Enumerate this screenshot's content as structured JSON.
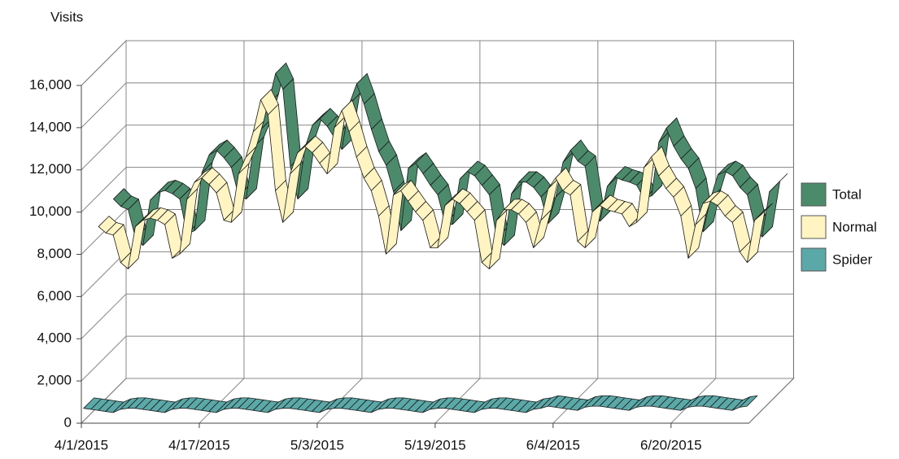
{
  "chart_data": {
    "type": "ribbon3d",
    "y_label": "Visits",
    "categories": [
      "4/1/2015",
      null,
      null,
      null,
      null,
      null,
      null,
      null,
      null,
      null,
      null,
      null,
      null,
      null,
      null,
      null,
      "4/17/2015",
      null,
      null,
      null,
      null,
      null,
      null,
      null,
      null,
      null,
      null,
      null,
      null,
      null,
      null,
      null,
      "5/3/2015",
      null,
      null,
      null,
      null,
      null,
      null,
      null,
      null,
      null,
      null,
      null,
      null,
      null,
      null,
      null,
      "5/19/2015",
      null,
      null,
      null,
      null,
      null,
      null,
      null,
      null,
      null,
      null,
      null,
      null,
      null,
      null,
      null,
      "6/4/2015",
      null,
      null,
      null,
      null,
      null,
      null,
      null,
      null,
      null,
      null,
      null,
      null,
      null,
      null,
      null,
      "6/20/2015",
      null,
      null,
      null,
      null,
      null,
      null,
      null,
      null,
      null,
      null
    ],
    "series": [
      {
        "name": "Total",
        "color": "#4b8b6b",
        "values": [
          9100,
          8750,
          8600,
          7250,
          6900,
          9050,
          9400,
          9500,
          9350,
          9100,
          7450,
          7600,
          10350,
          11200,
          11400,
          11050,
          10600,
          9250,
          9100,
          11550,
          12400,
          13600,
          15050,
          14300,
          10650,
          9100,
          11550,
          12600,
          12900,
          12550,
          12000,
          11450,
          13600,
          14550,
          13600,
          12400,
          11350,
          10700,
          9450,
          7600,
          10550,
          10800,
          10300,
          9750,
          9300,
          7950,
          7900,
          10050,
          10400,
          10200,
          9750,
          9300,
          7250,
          6900,
          9350,
          9900,
          9900,
          9650,
          9200,
          7950,
          9200,
          10850,
          11400,
          10900,
          10650,
          8400,
          8050,
          9700,
          10150,
          10000,
          9900,
          9750,
          9100,
          9250,
          11800,
          12450,
          11600,
          11000,
          10550,
          9600,
          7550,
          9100,
          10250,
          10400,
          10200,
          9650,
          9300,
          7850,
          7300,
          9450,
          9800
        ]
      },
      {
        "name": "Normal",
        "color": "#fff4c2",
        "values": [
          8500,
          8200,
          8100,
          6800,
          6500,
          8500,
          8800,
          8900,
          8800,
          8600,
          7000,
          7200,
          9800,
          10600,
          10800,
          10500,
          10100,
          8800,
          8700,
          11000,
          11800,
          13000,
          14500,
          13800,
          10200,
          8700,
          11000,
          12000,
          12300,
          12000,
          11500,
          11000,
          13200,
          14000,
          13000,
          11800,
          10800,
          10200,
          9000,
          7200,
          10000,
          10200,
          9700,
          9200,
          8800,
          7500,
          7500,
          9500,
          9800,
          9600,
          9200,
          8800,
          6800,
          6500,
          8800,
          9300,
          9300,
          9100,
          8700,
          7500,
          8800,
          10300,
          10800,
          10200,
          10000,
          7800,
          7500,
          9200,
          9500,
          9300,
          9200,
          9100,
          8500,
          8700,
          11300,
          11800,
          10900,
          10300,
          9900,
          9000,
          7000,
          8600,
          9600,
          9700,
          9500,
          9000,
          8700,
          7300,
          6800,
          8800,
          9100
        ]
      },
      {
        "name": "Spider",
        "color": "#5ba8a8",
        "values": [
          600,
          550,
          500,
          450,
          400,
          550,
          600,
          600,
          550,
          500,
          450,
          400,
          550,
          600,
          600,
          550,
          500,
          450,
          400,
          550,
          600,
          600,
          550,
          500,
          450,
          400,
          550,
          600,
          600,
          550,
          500,
          450,
          400,
          550,
          600,
          600,
          550,
          500,
          450,
          400,
          550,
          600,
          600,
          550,
          500,
          450,
          400,
          550,
          600,
          600,
          550,
          500,
          450,
          400,
          550,
          600,
          600,
          550,
          500,
          450,
          400,
          550,
          600,
          700,
          650,
          600,
          550,
          500,
          650,
          700,
          700,
          650,
          600,
          550,
          500,
          650,
          700,
          700,
          650,
          600,
          550,
          500,
          650,
          700,
          700,
          650,
          600,
          550,
          500,
          650,
          700
        ]
      }
    ],
    "ylim": [
      0,
      16000
    ],
    "yticks": [
      0,
      {
        "value": 2000,
        "label": "2,000"
      },
      {
        "value": 4000,
        "label": "4,000"
      },
      {
        "value": 6000,
        "label": "6,000"
      },
      {
        "value": 8000,
        "label": "8,000"
      },
      {
        "value": 10000,
        "label": "10,000"
      },
      {
        "value": 12000,
        "label": "12,000"
      },
      {
        "value": 14000,
        "label": "14,000"
      },
      {
        "value": 16000,
        "label": "16,000"
      }
    ],
    "grid": true,
    "legend": "right"
  }
}
